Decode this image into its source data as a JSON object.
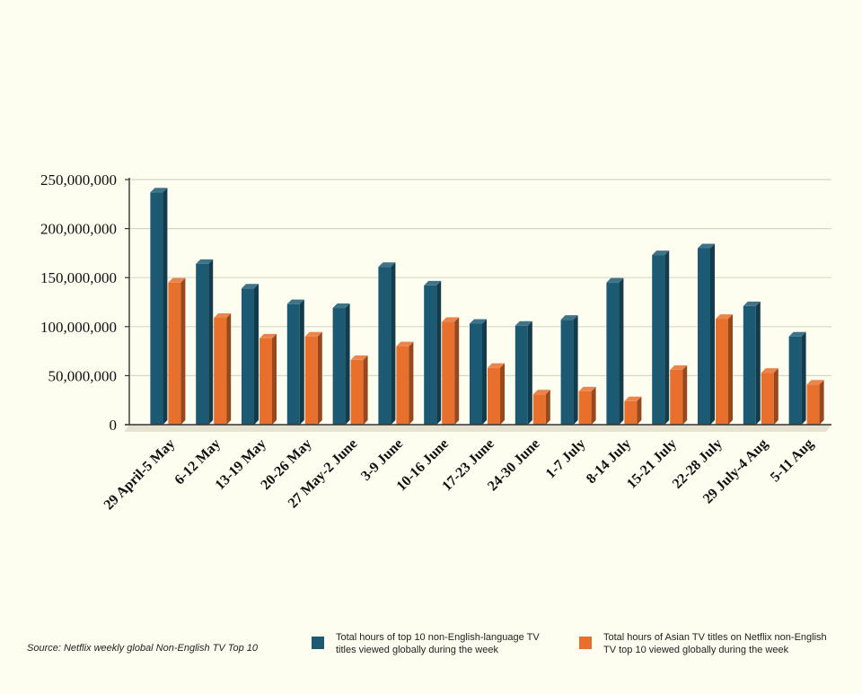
{
  "chart_data": {
    "type": "bar",
    "categories": [
      "29 April-5 May",
      "6-12 May",
      "13-19 May",
      "20-26 May",
      "27 May-2 June",
      "3-9 June",
      "10-16 June",
      "17-23 June",
      "24-30 June",
      "1-7 July",
      "8-14 July",
      "15-21 July",
      "22-28 July",
      "29 July-4 Aug",
      "5-11 Aug"
    ],
    "series": [
      {
        "name": "Total hours of top 10 non-English-language TV\ntitles viewed globally during the week",
        "color": "#1c5a73",
        "values": [
          237000000,
          164000000,
          139000000,
          123000000,
          119000000,
          161000000,
          142000000,
          103000000,
          101000000,
          107000000,
          145000000,
          173000000,
          180000000,
          121000000,
          90000000
        ]
      },
      {
        "name": "Total hours of Asian TV titles on Netflix non-English\nTV top 10 viewed globally during the week",
        "color": "#e8702c",
        "values": [
          145000000,
          109000000,
          88000000,
          90000000,
          66000000,
          80000000,
          105000000,
          58000000,
          31000000,
          34000000,
          24000000,
          56000000,
          108000000,
          53000000,
          41000000
        ]
      }
    ],
    "yticks": [
      "0",
      "50,000,000",
      "100,000,000",
      "150,000,000",
      "200,000,000",
      "250,000,000"
    ],
    "ylim": [
      0,
      250000000
    ],
    "grid": true,
    "legend_position": "bottom-right",
    "source": "Source: Netflix weekly global Non-English TV Top 10"
  }
}
